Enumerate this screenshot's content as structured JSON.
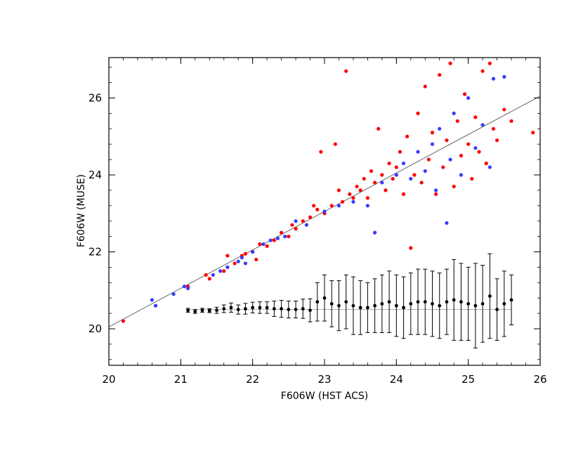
{
  "chart_data": {
    "type": "scatter",
    "title": "",
    "xlabel": "F606W (HST ACS)",
    "ylabel": "F606W (MUSE)",
    "xlim": [
      20,
      26
    ],
    "ylim": [
      19.05,
      27.05
    ],
    "xticks": [
      20,
      21,
      22,
      23,
      24,
      25,
      26
    ],
    "yticks": [
      20,
      22,
      24,
      26
    ],
    "grid": false,
    "legend": "none",
    "colors": {
      "red": "#ff0000",
      "blue": "#3a3aff",
      "errbar": "#000000",
      "line": "#555555"
    },
    "one_to_one_line": {
      "x": [
        20,
        26
      ],
      "y": [
        20.05,
        26.05
      ]
    },
    "reference_line": {
      "x": [
        21.1,
        25.6
      ],
      "y": 20.5
    },
    "series": [
      {
        "color": "red",
        "points": [
          [
            20.2,
            20.2
          ],
          [
            21.1,
            21.1
          ],
          [
            21.35,
            21.4
          ],
          [
            21.4,
            21.3
          ],
          [
            21.6,
            21.5
          ],
          [
            21.65,
            21.9
          ],
          [
            21.75,
            21.7
          ],
          [
            21.85,
            21.9
          ],
          [
            21.9,
            21.95
          ],
          [
            22.0,
            22.0
          ],
          [
            22.05,
            21.8
          ],
          [
            22.1,
            22.2
          ],
          [
            22.2,
            22.15
          ],
          [
            22.3,
            22.3
          ],
          [
            22.4,
            22.5
          ],
          [
            22.5,
            22.4
          ],
          [
            22.55,
            22.7
          ],
          [
            22.6,
            22.6
          ],
          [
            22.7,
            22.8
          ],
          [
            22.8,
            22.9
          ],
          [
            22.85,
            23.2
          ],
          [
            22.9,
            23.1
          ],
          [
            22.95,
            24.6
          ],
          [
            23.0,
            23.0
          ],
          [
            23.1,
            23.2
          ],
          [
            23.15,
            24.8
          ],
          [
            23.2,
            23.6
          ],
          [
            23.25,
            23.3
          ],
          [
            23.3,
            26.7
          ],
          [
            23.35,
            23.5
          ],
          [
            23.4,
            23.4
          ],
          [
            23.45,
            23.7
          ],
          [
            23.5,
            23.6
          ],
          [
            23.55,
            23.9
          ],
          [
            23.6,
            23.4
          ],
          [
            23.65,
            24.1
          ],
          [
            23.7,
            23.8
          ],
          [
            23.75,
            25.2
          ],
          [
            23.8,
            24.0
          ],
          [
            23.85,
            23.6
          ],
          [
            23.9,
            24.3
          ],
          [
            23.95,
            23.9
          ],
          [
            24.0,
            24.2
          ],
          [
            24.05,
            24.6
          ],
          [
            24.1,
            23.5
          ],
          [
            24.15,
            25.0
          ],
          [
            24.2,
            22.1
          ],
          [
            24.25,
            24.0
          ],
          [
            24.3,
            25.6
          ],
          [
            24.35,
            23.8
          ],
          [
            24.4,
            26.3
          ],
          [
            24.45,
            24.4
          ],
          [
            24.5,
            25.1
          ],
          [
            24.55,
            23.5
          ],
          [
            24.6,
            26.6
          ],
          [
            24.65,
            24.2
          ],
          [
            24.7,
            24.9
          ],
          [
            24.75,
            26.9
          ],
          [
            24.8,
            23.7
          ],
          [
            24.85,
            25.4
          ],
          [
            24.9,
            24.5
          ],
          [
            24.95,
            26.1
          ],
          [
            25.0,
            24.8
          ],
          [
            25.05,
            23.9
          ],
          [
            25.1,
            25.5
          ],
          [
            25.15,
            24.6
          ],
          [
            25.2,
            26.7
          ],
          [
            25.25,
            24.3
          ],
          [
            25.3,
            26.9
          ],
          [
            25.35,
            25.2
          ],
          [
            25.4,
            24.9
          ],
          [
            25.5,
            25.7
          ],
          [
            25.6,
            25.4
          ],
          [
            25.9,
            25.1
          ]
        ]
      },
      {
        "color": "blue",
        "points": [
          [
            20.6,
            20.75
          ],
          [
            20.65,
            20.6
          ],
          [
            20.9,
            20.9
          ],
          [
            21.05,
            21.1
          ],
          [
            21.1,
            21.05
          ],
          [
            21.45,
            21.4
          ],
          [
            21.55,
            21.5
          ],
          [
            21.65,
            21.6
          ],
          [
            21.8,
            21.75
          ],
          [
            21.85,
            21.85
          ],
          [
            21.9,
            21.7
          ],
          [
            22.0,
            22.0
          ],
          [
            22.15,
            22.2
          ],
          [
            22.25,
            22.3
          ],
          [
            22.35,
            22.35
          ],
          [
            22.45,
            22.4
          ],
          [
            22.6,
            22.8
          ],
          [
            22.75,
            22.7
          ],
          [
            23.0,
            23.05
          ],
          [
            23.2,
            23.2
          ],
          [
            23.4,
            23.3
          ],
          [
            23.6,
            23.2
          ],
          [
            23.7,
            22.5
          ],
          [
            23.8,
            23.8
          ],
          [
            24.0,
            24.0
          ],
          [
            24.1,
            24.3
          ],
          [
            24.2,
            23.9
          ],
          [
            24.3,
            24.6
          ],
          [
            24.4,
            24.1
          ],
          [
            24.5,
            24.8
          ],
          [
            24.55,
            23.6
          ],
          [
            24.6,
            25.2
          ],
          [
            24.7,
            22.75
          ],
          [
            24.75,
            24.4
          ],
          [
            24.8,
            25.6
          ],
          [
            24.9,
            24.0
          ],
          [
            25.0,
            26.0
          ],
          [
            25.1,
            24.7
          ],
          [
            25.2,
            25.3
          ],
          [
            25.3,
            24.2
          ],
          [
            25.35,
            26.5
          ],
          [
            25.5,
            26.55
          ]
        ]
      },
      {
        "color": "errbar",
        "name": "",
        "x": [
          21.1,
          21.2,
          21.3,
          21.4,
          21.5,
          21.6,
          21.7,
          21.8,
          21.9,
          22.0,
          22.1,
          22.2,
          22.3,
          22.4,
          22.5,
          22.6,
          22.7,
          22.8,
          22.9,
          23.0,
          23.1,
          23.2,
          23.3,
          23.4,
          23.5,
          23.6,
          23.7,
          23.8,
          23.9,
          24.0,
          24.1,
          24.2,
          24.3,
          24.4,
          24.5,
          24.6,
          24.7,
          24.8,
          24.9,
          25.0,
          25.1,
          25.2,
          25.3,
          25.4,
          25.5,
          25.6
        ],
        "y": [
          20.48,
          20.45,
          20.48,
          20.47,
          20.48,
          20.52,
          20.55,
          20.5,
          20.52,
          20.55,
          20.55,
          20.55,
          20.52,
          20.52,
          20.5,
          20.5,
          20.52,
          20.48,
          20.7,
          20.8,
          20.65,
          20.6,
          20.7,
          20.6,
          20.55,
          20.55,
          20.6,
          20.65,
          20.7,
          20.6,
          20.55,
          20.65,
          20.7,
          20.7,
          20.65,
          20.6,
          20.7,
          20.75,
          20.7,
          20.65,
          20.6,
          20.65,
          20.85,
          20.5,
          20.65,
          20.75
        ],
        "err": [
          0.05,
          0.05,
          0.05,
          0.05,
          0.08,
          0.1,
          0.12,
          0.12,
          0.14,
          0.14,
          0.15,
          0.15,
          0.2,
          0.22,
          0.22,
          0.22,
          0.25,
          0.3,
          0.5,
          0.6,
          0.6,
          0.65,
          0.7,
          0.75,
          0.7,
          0.65,
          0.7,
          0.75,
          0.8,
          0.8,
          0.8,
          0.8,
          0.85,
          0.85,
          0.85,
          0.85,
          0.85,
          1.05,
          1.0,
          0.95,
          1.1,
          1.0,
          1.1,
          0.8,
          0.85,
          0.65
        ]
      }
    ]
  }
}
